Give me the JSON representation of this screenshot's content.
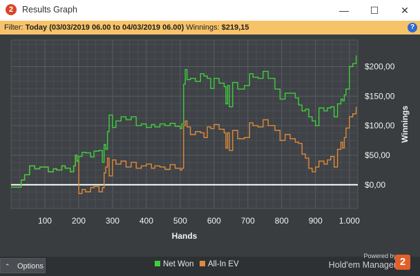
{
  "window": {
    "icon_label": "2",
    "title": "Results Graph",
    "minimize_glyph": "—",
    "maximize_glyph": "☐",
    "close_glyph": "✕"
  },
  "filter": {
    "prefix": "Filter:",
    "range": "Today (03/03/2019 06.00 to 04/03/2019 06.00)",
    "winnings_label": "Winnings:",
    "winnings_value": "$219,15",
    "help_glyph": "?"
  },
  "chart_data": {
    "type": "line",
    "xlabel": "Hands",
    "ylabel": "Winnings",
    "xlim": [
      0,
      1025
    ],
    "ylim": [
      -40,
      245
    ],
    "x_ticks": [
      100,
      200,
      300,
      400,
      500,
      600,
      700,
      800,
      900,
      1000
    ],
    "x_tick_labels": [
      "100",
      "200",
      "300",
      "400",
      "500",
      "600",
      "700",
      "800",
      "900",
      "1.000"
    ],
    "y_ticks": [
      0,
      50,
      100,
      150,
      200
    ],
    "y_tick_labels": [
      "$0,00",
      "$50,00",
      "$100,00",
      "$150,00",
      "$200,00"
    ],
    "grid": true,
    "legend_position": "bottom",
    "series": [
      {
        "name": "Net Won",
        "color": "#3ecf3e",
        "x": [
          0,
          25,
          30,
          40,
          55,
          70,
          85,
          100,
          110,
          125,
          135,
          150,
          160,
          175,
          185,
          190,
          195,
          200,
          210,
          220,
          235,
          245,
          260,
          270,
          275,
          280,
          285,
          290,
          300,
          310,
          325,
          340,
          355,
          370,
          385,
          400,
          415,
          425,
          440,
          455,
          470,
          485,
          500,
          505,
          510,
          515,
          520,
          530,
          545,
          560,
          570,
          580,
          590,
          600,
          615,
          630,
          635,
          640,
          645,
          655,
          670,
          690,
          705,
          715,
          730,
          745,
          760,
          780,
          795,
          810,
          825,
          840,
          850,
          860,
          870,
          880,
          890,
          900,
          910,
          925,
          935,
          945,
          955,
          965,
          975,
          980,
          985,
          990,
          1000,
          1010,
          1020
        ],
        "y": [
          -4,
          -4,
          8,
          17,
          32,
          27,
          30,
          30,
          22,
          27,
          25,
          32,
          28,
          22,
          32,
          50,
          40,
          48,
          55,
          54,
          47,
          57,
          58,
          38,
          68,
          60,
          90,
          118,
          97,
          108,
          115,
          110,
          115,
          100,
          103,
          97,
          102,
          98,
          103,
          100,
          104,
          99,
          95,
          103,
          170,
          195,
          178,
          180,
          175,
          188,
          184,
          180,
          163,
          180,
          172,
          166,
          137,
          168,
          132,
          173,
          162,
          168,
          188,
          182,
          180,
          192,
          180,
          162,
          145,
          155,
          155,
          147,
          135,
          125,
          128,
          115,
          108,
          100,
          130,
          125,
          130,
          132,
          115,
          137,
          145,
          142,
          152,
          162,
          200,
          205,
          219
        ]
      },
      {
        "name": "All-In EV",
        "color": "#e08a3a",
        "x": [
          0,
          25,
          30,
          40,
          55,
          70,
          85,
          100,
          110,
          125,
          135,
          150,
          160,
          175,
          185,
          190,
          195,
          200,
          210,
          220,
          235,
          245,
          260,
          270,
          275,
          280,
          285,
          290,
          300,
          310,
          325,
          340,
          355,
          370,
          385,
          400,
          415,
          425,
          440,
          455,
          470,
          485,
          500,
          505,
          510,
          515,
          520,
          530,
          545,
          560,
          570,
          580,
          590,
          600,
          615,
          630,
          635,
          640,
          645,
          655,
          670,
          690,
          705,
          715,
          730,
          745,
          760,
          780,
          795,
          810,
          825,
          840,
          850,
          860,
          870,
          880,
          890,
          900,
          910,
          925,
          935,
          945,
          955,
          965,
          975,
          980,
          985,
          990,
          1000,
          1010,
          1020
        ],
        "y": [
          -4,
          -4,
          8,
          17,
          32,
          27,
          30,
          30,
          22,
          27,
          25,
          32,
          28,
          22,
          32,
          50,
          40,
          -15,
          -8,
          -12,
          -5,
          -3,
          -12,
          -5,
          20,
          30,
          45,
          15,
          42,
          35,
          40,
          30,
          38,
          28,
          32,
          35,
          28,
          32,
          30,
          26,
          34,
          28,
          25,
          28,
          100,
          108,
          98,
          85,
          90,
          88,
          80,
          98,
          95,
          102,
          94,
          88,
          62,
          88,
          58,
          92,
          78,
          80,
          105,
          100,
          98,
          110,
          100,
          92,
          75,
          85,
          78,
          72,
          70,
          52,
          45,
          28,
          22,
          30,
          40,
          35,
          42,
          48,
          30,
          60,
          72,
          62,
          80,
          96,
          115,
          120,
          132
        ]
      }
    ]
  },
  "footer": {
    "options_glyph": "⌃",
    "options_label": "Options",
    "legend_net_won": "Net Won",
    "legend_allin_ev": "All-In EV",
    "powered_by": "Powered by",
    "brand_name": "Hold'em Manager",
    "brand_logo": "2",
    "net_won_color": "#3ecf3e",
    "allin_color": "#e08a3a"
  }
}
